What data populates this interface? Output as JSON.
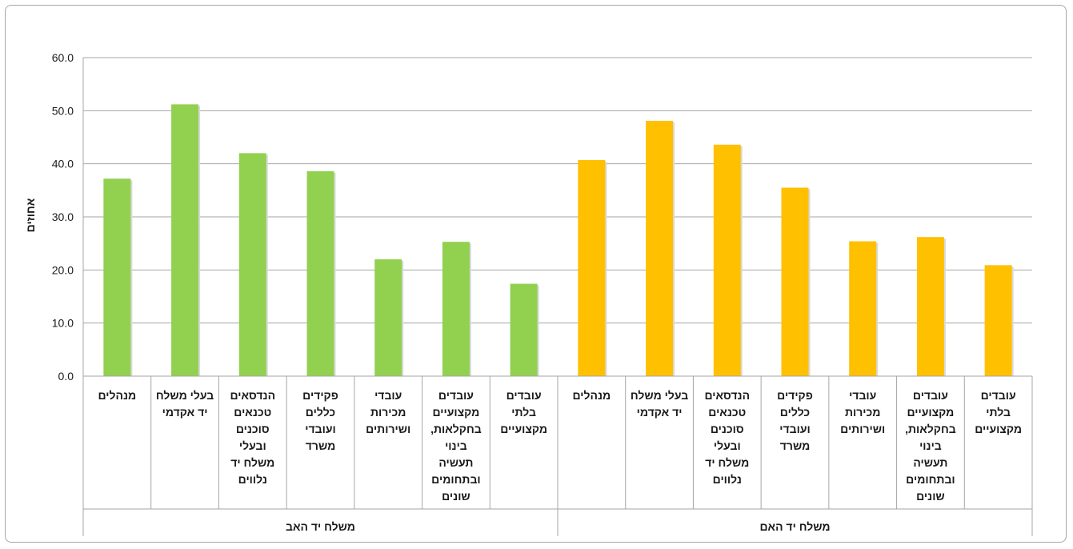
{
  "chart_data": {
    "type": "bar",
    "ylabel": "אחוזים",
    "ylim": [
      0,
      60
    ],
    "yticks": [
      "0.0",
      "10.0",
      "20.0",
      "30.0",
      "40.0",
      "50.0",
      "60.0"
    ],
    "grid": true,
    "groups": [
      {
        "name": "משלח יד האב",
        "color": "#92d050",
        "categories": [
          "מנהלים",
          "בעלי משלח\nיד אקדמי",
          "הנדסאים\nטכנאים\nסוכנים\nובעלי\nמשלח יד\nנלווים",
          "פקידים\nכללים\nועובדי\nמשרד",
          "עובדי\nמכירות\nושירותים",
          "עובדים\nמקצועיים\nבחקלאות,\nבינוי\nתעשיה\nובתחומים\nשונים",
          "עובדים\nבלתי\nמקצועיים"
        ],
        "values": [
          37.2,
          51.2,
          42.0,
          38.6,
          22.0,
          25.3,
          17.4
        ]
      },
      {
        "name": "משלח יד האם",
        "color": "#ffc000",
        "categories": [
          "מנהלים",
          "בעלי משלח\nיד אקדמי",
          "הנדסאים\nטכנאים\nסוכנים\nובעלי\nמשלח יד\nנלווים",
          "פקידים\nכללים\nועובדי\nמשרד",
          "עובדי\nמכירות\nושירותים",
          "עובדים\nמקצועיים\nבחקלאות,\nבינוי\nתעשיה\nובתחומים\nשונים",
          "עובדים\nבלתי\nמקצועיים"
        ],
        "values": [
          40.7,
          48.1,
          43.6,
          35.5,
          25.4,
          26.2,
          20.9
        ]
      }
    ]
  }
}
